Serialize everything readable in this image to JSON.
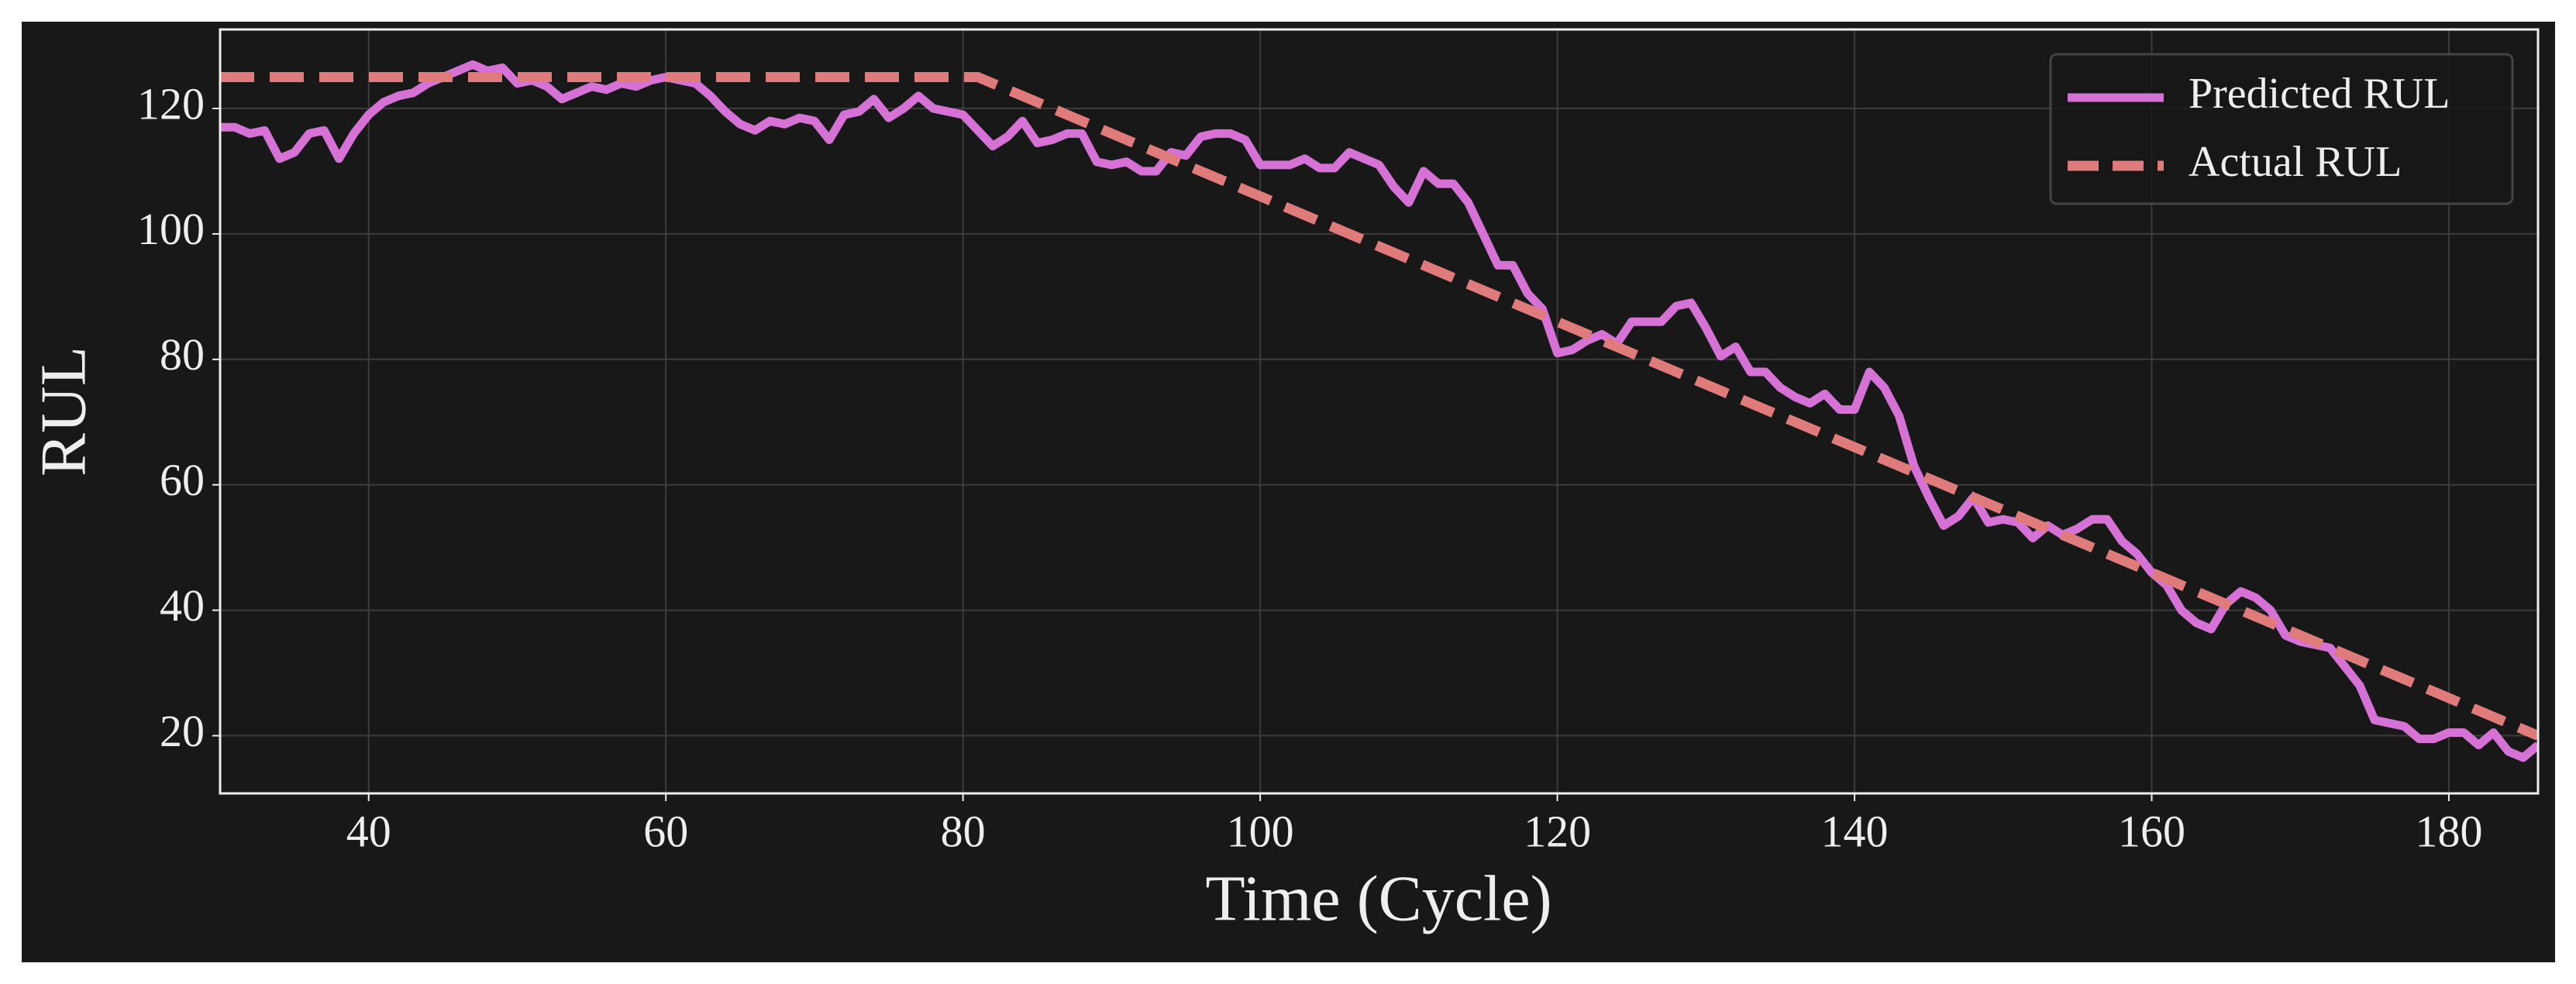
{
  "chart_data": {
    "type": "line",
    "x_label": "Time (Cycle)",
    "y_label": "RUL",
    "xlim": [
      30,
      186
    ],
    "ylim": [
      10.8,
      132.6
    ],
    "xticks": [
      40,
      60,
      80,
      100,
      120,
      140,
      160,
      180
    ],
    "yticks": [
      20,
      40,
      60,
      80,
      100,
      120
    ],
    "grid": true,
    "legend": "upper right",
    "series": [
      {
        "name": "Predicted RUL",
        "color": "#d672d6",
        "style": "solid",
        "x": [
          30,
          31,
          32,
          33,
          34,
          35,
          36,
          37,
          38,
          39,
          40,
          41,
          42,
          43,
          44,
          45,
          46,
          47,
          48,
          49,
          50,
          51,
          52,
          53,
          54,
          55,
          56,
          57,
          58,
          59,
          60,
          61,
          62,
          63,
          64,
          65,
          66,
          67,
          68,
          69,
          70,
          71,
          72,
          73,
          74,
          75,
          76,
          77,
          78,
          79,
          80,
          81,
          82,
          83,
          84,
          85,
          86,
          87,
          88,
          89,
          90,
          91,
          92,
          93,
          94,
          95,
          96,
          97,
          98,
          99,
          100,
          101,
          102,
          103,
          104,
          105,
          106,
          107,
          108,
          109,
          110,
          111,
          112,
          113,
          114,
          115,
          116,
          117,
          118,
          119,
          120,
          121,
          122,
          123,
          124,
          125,
          126,
          127,
          128,
          129,
          130,
          131,
          132,
          133,
          134,
          135,
          136,
          137,
          138,
          139,
          140,
          141,
          142,
          143,
          144,
          145,
          146,
          147,
          148,
          149,
          150,
          151,
          152,
          153,
          154,
          155,
          156,
          157,
          158,
          159,
          160,
          161,
          162,
          163,
          164,
          165,
          166,
          167,
          168,
          169,
          170,
          171,
          172,
          173,
          174,
          175,
          176,
          177,
          178,
          179,
          180,
          181,
          182,
          183,
          184,
          185,
          186
        ],
        "values": [
          117,
          117,
          116,
          116.5,
          112,
          113,
          116,
          116.5,
          112,
          116,
          119,
          121,
          122,
          122.5,
          124,
          125,
          126,
          127,
          126,
          126.5,
          124,
          124.5,
          123.5,
          121.5,
          122.5,
          123.5,
          123,
          124,
          123.5,
          124.5,
          125,
          124.5,
          124,
          122,
          119.5,
          117.5,
          116.5,
          118,
          117.5,
          118.5,
          118,
          115,
          119,
          119.5,
          121.5,
          118.5,
          120,
          122,
          120,
          119.5,
          119,
          116.5,
          114,
          115.5,
          118,
          114.5,
          115,
          116,
          116,
          111.5,
          111,
          111.5,
          110,
          110,
          113,
          112.5,
          115.5,
          116,
          116,
          115,
          111,
          111,
          111,
          112,
          110.5,
          110.5,
          113,
          112,
          111,
          107.5,
          105,
          110,
          108,
          108,
          105,
          100,
          95,
          95,
          90.5,
          88,
          81,
          81.5,
          83,
          84,
          82.5,
          86,
          86,
          86,
          88.5,
          89,
          85,
          80.5,
          82,
          78,
          78,
          75.5,
          74,
          73,
          74.5,
          72,
          72,
          78,
          75.5,
          71,
          63,
          58,
          53.5,
          55,
          58,
          54,
          54.5,
          54,
          51.5,
          53.5,
          52,
          53,
          54.5,
          54.5,
          51,
          49,
          46,
          44,
          40,
          38,
          37,
          41,
          43,
          42,
          40,
          36,
          35,
          34.5,
          34,
          31,
          28,
          22.5,
          22,
          21.5,
          19.5,
          19.5,
          20.5,
          20.5,
          18.5,
          20.5,
          17.5,
          16.5,
          18.5
        ]
      },
      {
        "name": "Actual RUL",
        "color": "#e07b7b",
        "style": "dashed",
        "x": [
          30,
          81,
          186
        ],
        "values": [
          125,
          125,
          20
        ]
      }
    ]
  }
}
